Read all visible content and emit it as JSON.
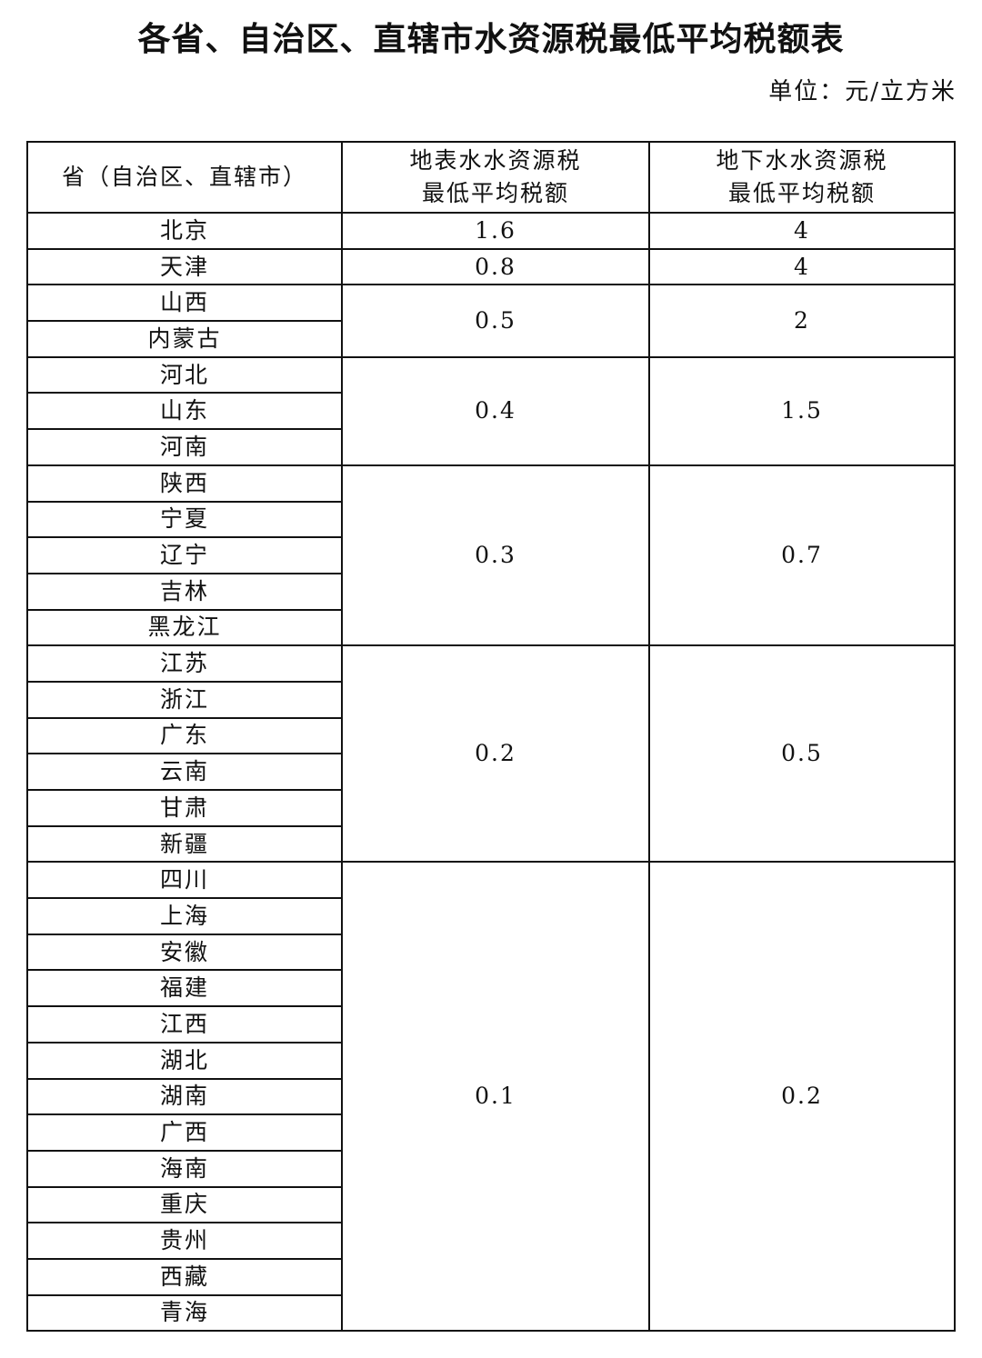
{
  "title": "各省、自治区、直辖市水资源税最低平均税额表",
  "unit": "单位：元/立方米",
  "table": {
    "headers": {
      "region": "省（自治区、直辖市）",
      "surface_line1": "地表水水资源税",
      "surface_line2": "最低平均税额",
      "ground_line1": "地下水水资源税",
      "ground_line2": "最低平均税额"
    },
    "groups": [
      {
        "regions": [
          "北京"
        ],
        "surface": "1.6",
        "ground": "4"
      },
      {
        "regions": [
          "天津"
        ],
        "surface": "0.8",
        "ground": "4"
      },
      {
        "regions": [
          "山西",
          "内蒙古"
        ],
        "surface": "0.5",
        "ground": "2"
      },
      {
        "regions": [
          "河北",
          "山东",
          "河南"
        ],
        "surface": "0.4",
        "ground": "1.5"
      },
      {
        "regions": [
          "陕西",
          "宁夏",
          "辽宁",
          "吉林",
          "黑龙江"
        ],
        "surface": "0.3",
        "ground": "0.7"
      },
      {
        "regions": [
          "江苏",
          "浙江",
          "广东",
          "云南",
          "甘肃",
          "新疆"
        ],
        "surface": "0.2",
        "ground": "0.5"
      },
      {
        "regions": [
          "四川",
          "上海",
          "安徽",
          "福建",
          "江西",
          "湖北",
          "湖南",
          "广西",
          "海南",
          "重庆",
          "贵州",
          "西藏",
          "青海"
        ],
        "surface": "0.1",
        "ground": "0.2"
      }
    ]
  }
}
